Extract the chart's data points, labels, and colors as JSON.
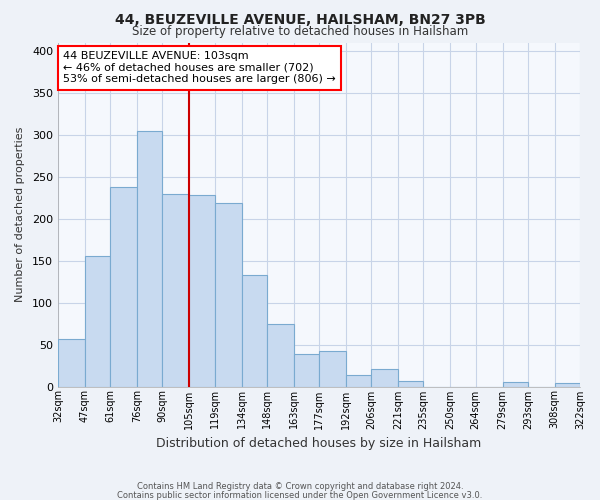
{
  "title": "44, BEUZEVILLE AVENUE, HAILSHAM, BN27 3PB",
  "subtitle": "Size of property relative to detached houses in Hailsham",
  "xlabel": "Distribution of detached houses by size in Hailsham",
  "ylabel": "Number of detached properties",
  "bar_color": "#c8daf0",
  "bar_edge_color": "#7aaad0",
  "reference_line_x": 105,
  "reference_line_color": "#cc0000",
  "bin_edges": [
    32,
    47,
    61,
    76,
    90,
    105,
    119,
    134,
    148,
    163,
    177,
    192,
    206,
    221,
    235,
    250,
    264,
    279,
    293,
    308,
    322
  ],
  "bin_labels": [
    "32sqm",
    "47sqm",
    "61sqm",
    "76sqm",
    "90sqm",
    "105sqm",
    "119sqm",
    "134sqm",
    "148sqm",
    "163sqm",
    "177sqm",
    "192sqm",
    "206sqm",
    "221sqm",
    "235sqm",
    "250sqm",
    "264sqm",
    "279sqm",
    "293sqm",
    "308sqm",
    "322sqm"
  ],
  "counts": [
    57,
    155,
    238,
    304,
    230,
    228,
    219,
    133,
    75,
    39,
    42,
    14,
    21,
    7,
    0,
    0,
    0,
    5,
    0,
    4
  ],
  "ylim": [
    0,
    410
  ],
  "yticks": [
    0,
    50,
    100,
    150,
    200,
    250,
    300,
    350,
    400
  ],
  "annotation_line1": "44 BEUZEVILLE AVENUE: 103sqm",
  "annotation_line2": "← 46% of detached houses are smaller (702)",
  "annotation_line3": "53% of semi-detached houses are larger (806) →",
  "footer_line1": "Contains HM Land Registry data © Crown copyright and database right 2024.",
  "footer_line2": "Contains public sector information licensed under the Open Government Licence v3.0.",
  "bg_color": "#eef2f8",
  "plot_bg_color": "#f5f8fd",
  "grid_color": "#c8d4e8"
}
